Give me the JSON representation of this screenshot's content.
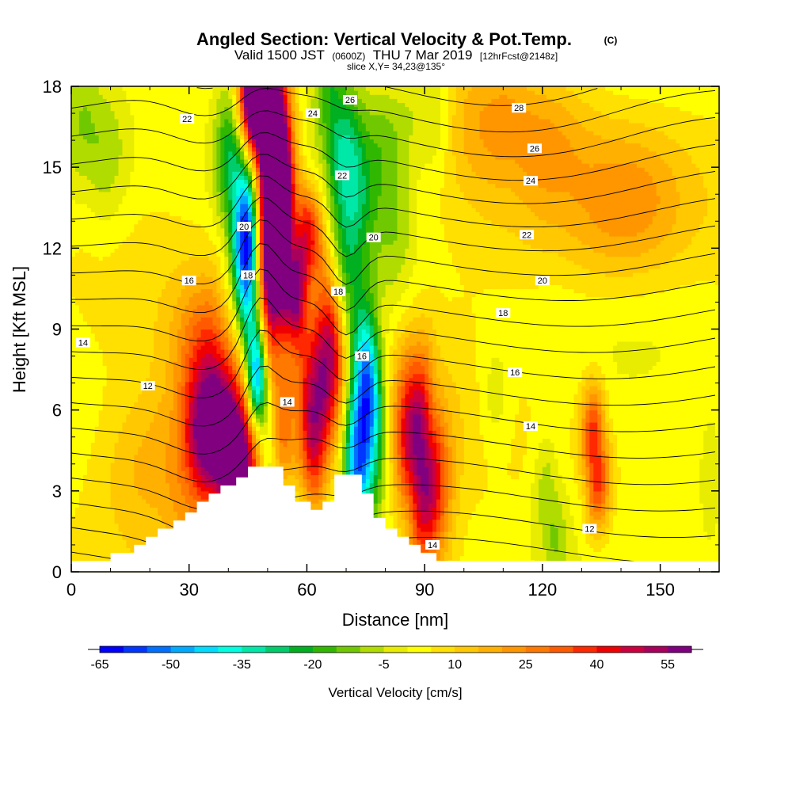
{
  "chart_data": {
    "type": "heatmap",
    "title": {
      "main": "Angled Section: Vertical Velocity & Pot.Temp.",
      "copyright": "(C)",
      "valid_prefix": "Valid 1500 JST",
      "valid_utc": "(0600Z)",
      "valid_date": "THU 7 Mar 2019",
      "forecast": "[12hrFcst@2148z]",
      "slice": "slice X,Y= 34,23@135°"
    },
    "xlabel": "Distance [nm]",
    "ylabel": "Height [Kft MSL]",
    "xlim": [
      0,
      165
    ],
    "ylim": [
      0,
      18
    ],
    "x_ticks": [
      "0",
      "30",
      "60",
      "90",
      "120",
      "150"
    ],
    "y_ticks": [
      "0",
      "3",
      "6",
      "9",
      "12",
      "15",
      "18"
    ],
    "colorbar": {
      "label": "Vertical Velocity [cm/s]",
      "tick_labels": [
        "-65",
        "-50",
        "-35",
        "-20",
        "-5",
        "10",
        "25",
        "40",
        "55"
      ],
      "levels": [
        -65,
        -60,
        -55,
        -50,
        -45,
        -40,
        -35,
        -30,
        -25,
        -20,
        -15,
        -10,
        -5,
        0,
        5,
        10,
        15,
        20,
        25,
        30,
        35,
        40,
        45,
        50,
        55,
        60
      ],
      "colors": [
        "#0000ff",
        "#0036ff",
        "#0070ff",
        "#00aaff",
        "#00dcff",
        "#00ffe0",
        "#00e8a8",
        "#00cc6c",
        "#00b020",
        "#30b800",
        "#70c800",
        "#b0dc00",
        "#e8ec00",
        "#ffff00",
        "#ffe000",
        "#ffc800",
        "#ffb000",
        "#ff9600",
        "#ff7800",
        "#ff5a00",
        "#ff2800",
        "#f00000",
        "#cc0040",
        "#a8005c",
        "#800080"
      ]
    },
    "terrain": [
      [
        0,
        0.4
      ],
      [
        10,
        0.4
      ],
      [
        10,
        0.7
      ],
      [
        16,
        0.7
      ],
      [
        16,
        1.0
      ],
      [
        19,
        1.0
      ],
      [
        19,
        1.3
      ],
      [
        22,
        1.3
      ],
      [
        22,
        1.6
      ],
      [
        26,
        1.6
      ],
      [
        26,
        1.9
      ],
      [
        29,
        1.9
      ],
      [
        29,
        2.2
      ],
      [
        32,
        2.2
      ],
      [
        32,
        2.6
      ],
      [
        35,
        2.6
      ],
      [
        35,
        2.9
      ],
      [
        38,
        2.9
      ],
      [
        38,
        3.2
      ],
      [
        42,
        3.2
      ],
      [
        42,
        3.5
      ],
      [
        45,
        3.5
      ],
      [
        45,
        3.9
      ],
      [
        54,
        3.9
      ],
      [
        54,
        3.2
      ],
      [
        57,
        3.2
      ],
      [
        57,
        2.6
      ],
      [
        61,
        2.6
      ],
      [
        61,
        2.3
      ],
      [
        64,
        2.3
      ],
      [
        64,
        2.6
      ],
      [
        67,
        2.6
      ],
      [
        67,
        3.6
      ],
      [
        74,
        3.6
      ],
      [
        74,
        2.9
      ],
      [
        77,
        2.9
      ],
      [
        77,
        2.0
      ],
      [
        80,
        2.0
      ],
      [
        80,
        1.6
      ],
      [
        83,
        1.6
      ],
      [
        83,
        1.3
      ],
      [
        86,
        1.3
      ],
      [
        86,
        1.0
      ],
      [
        89,
        1.0
      ],
      [
        89,
        0.7
      ],
      [
        93,
        0.7
      ],
      [
        93,
        0.4
      ],
      [
        165,
        0.4
      ]
    ],
    "velocity_features": [
      {
        "x": [
          36,
          42,
          47
        ],
        "z": [
          5.0,
          4.0,
          4.5
        ],
        "w": 60,
        "sx": 5,
        "sz": 1.6
      },
      {
        "x": [
          35,
          40
        ],
        "z": [
          8.0,
          6.5
        ],
        "w": 30,
        "sx": 6,
        "sz": 2.0
      },
      {
        "x": [
          22,
          30
        ],
        "z": [
          4.0,
          2.0
        ],
        "w": 14,
        "sx": 10,
        "sz": 2.0
      },
      {
        "x": [
          49,
          53
        ],
        "z": [
          9.5,
          14.5
        ],
        "w": 62,
        "sx": 2.6,
        "sz": 1.8
      },
      {
        "x": [
          52,
          48
        ],
        "z": [
          13.5,
          17.0
        ],
        "w": 55,
        "sx": 2.8,
        "sz": 2.0
      },
      {
        "x": [
          51,
          46
        ],
        "z": [
          17.5,
          17.5
        ],
        "w": 45,
        "sx": 3.0,
        "sz": 1.2
      },
      {
        "x": [
          62,
          66
        ],
        "z": [
          5.5,
          8.0
        ],
        "w": 52,
        "sx": 2.8,
        "sz": 2.3
      },
      {
        "x": [
          57,
          60
        ],
        "z": [
          10.5,
          12.5
        ],
        "w": 42,
        "sx": 3.0,
        "sz": 1.3
      },
      {
        "x": [
          88,
          90
        ],
        "z": [
          5.0,
          3.2
        ],
        "w": 52,
        "sx": 4.2,
        "sz": 2.2
      },
      {
        "x": [
          133,
          134
        ],
        "z": [
          5.0,
          3.5
        ],
        "w": 36,
        "sx": 2.3,
        "sz": 1.4
      },
      {
        "x": [
          112,
          118
        ],
        "z": [
          16.5,
          16.0
        ],
        "w": 18,
        "sx": 10,
        "sz": 1.8
      },
      {
        "x": [
          143
        ],
        "z": [
          14.0
        ],
        "w": 15,
        "sx": 10,
        "sz": 2.0
      },
      {
        "x": [
          122,
          132
        ],
        "z": [
          13.0,
          12.5
        ],
        "w": 10,
        "sx": 15,
        "sz": 2.0
      },
      {
        "x": [
          52
        ],
        "z": [
          1.5
        ],
        "w": -10,
        "sx": 4,
        "sz": 1.0
      },
      {
        "x": [
          54,
          57
        ],
        "z": [
          7.0,
          9.0
        ],
        "w": 15,
        "sx": 5,
        "sz": 2.0
      },
      {
        "x": [
          45,
          47
        ],
        "z": [
          11.0,
          8.0
        ],
        "w": -60,
        "sx": 2.2,
        "sz": 2.5
      },
      {
        "x": [
          48,
          50
        ],
        "z": [
          7.0,
          4.5
        ],
        "w": -50,
        "sx": 2.0,
        "sz": 2.2
      },
      {
        "x": [
          43,
          41
        ],
        "z": [
          13.5,
          15.5
        ],
        "w": -28,
        "sx": 3.0,
        "sz": 2.0
      },
      {
        "x": [
          73,
          75
        ],
        "z": [
          4.5,
          7.0
        ],
        "w": -50,
        "sx": 2.4,
        "sz": 2.0
      },
      {
        "x": [
          70,
          72
        ],
        "z": [
          11.0,
          14.0
        ],
        "w": -24,
        "sx": 3.0,
        "sz": 2.5
      },
      {
        "x": [
          68,
          66
        ],
        "z": [
          16.0,
          18.0
        ],
        "w": -22,
        "sx": 3.0,
        "sz": 2.0
      },
      {
        "x": [
          77
        ],
        "z": [
          5.0
        ],
        "w": -25,
        "sx": 3.0,
        "sz": 2.0
      },
      {
        "x": [
          79,
          82
        ],
        "z": [
          14.0,
          13.0
        ],
        "w": -12,
        "sx": 4,
        "sz": 2.5
      },
      {
        "x": [
          82,
          88
        ],
        "z": [
          16.5,
          17.5
        ],
        "w": -10,
        "sx": 5,
        "sz": 1.5
      },
      {
        "x": [
          93
        ],
        "z": [
          16.5
        ],
        "w": -8,
        "sx": 3,
        "sz": 1.5
      },
      {
        "x": [
          4,
          8
        ],
        "z": [
          16.5,
          15.5
        ],
        "w": -12,
        "sx": 5,
        "sz": 2.0
      },
      {
        "x": [
          108
        ],
        "z": [
          6.5
        ],
        "w": -9,
        "sx": 2.8,
        "sz": 1.5
      },
      {
        "x": [
          121,
          123
        ],
        "z": [
          3.0,
          1.5
        ],
        "w": -12,
        "sx": 2.5,
        "sz": 1.5
      },
      {
        "x": [
          163
        ],
        "z": [
          3.0
        ],
        "w": -9,
        "sx": 3,
        "sz": 2.0
      },
      {
        "x": [
          115
        ],
        "z": [
          15.0
        ],
        "w": -5,
        "sx": 8,
        "sz": 2.0
      }
    ],
    "theta_contours": {
      "levels": [
        10,
        11,
        12,
        13,
        14,
        15,
        16,
        17,
        18,
        19,
        20,
        21,
        22,
        23,
        24,
        25,
        26,
        27,
        28,
        29,
        30
      ],
      "labels": [
        {
          "text": "14",
          "x": 3,
          "z": 8.5
        },
        {
          "text": "12",
          "x": 19.5,
          "z": 6.9
        },
        {
          "text": "16",
          "x": 30,
          "z": 10.8
        },
        {
          "text": "22",
          "x": 29.5,
          "z": 16.8
        },
        {
          "text": "20",
          "x": 44,
          "z": 12.8
        },
        {
          "text": "18",
          "x": 45,
          "z": 11.0
        },
        {
          "text": "24",
          "x": 61.5,
          "z": 17.0
        },
        {
          "text": "26",
          "x": 71,
          "z": 17.5
        },
        {
          "text": "22",
          "x": 69,
          "z": 14.7
        },
        {
          "text": "20",
          "x": 77,
          "z": 12.4
        },
        {
          "text": "14",
          "x": 55,
          "z": 6.3
        },
        {
          "text": "18",
          "x": 68,
          "z": 10.4
        },
        {
          "text": "16",
          "x": 74,
          "z": 8.0
        },
        {
          "text": "14",
          "x": 92,
          "z": 1.0
        },
        {
          "text": "28",
          "x": 114,
          "z": 17.2
        },
        {
          "text": "26",
          "x": 118,
          "z": 15.7
        },
        {
          "text": "24",
          "x": 117,
          "z": 14.5
        },
        {
          "text": "22",
          "x": 116,
          "z": 12.5
        },
        {
          "text": "20",
          "x": 120,
          "z": 10.8
        },
        {
          "text": "18",
          "x": 110,
          "z": 9.6
        },
        {
          "text": "16",
          "x": 113,
          "z": 7.4
        },
        {
          "text": "14",
          "x": 117,
          "z": 5.4
        },
        {
          "text": "12",
          "x": 132,
          "z": 1.6
        }
      ]
    }
  }
}
